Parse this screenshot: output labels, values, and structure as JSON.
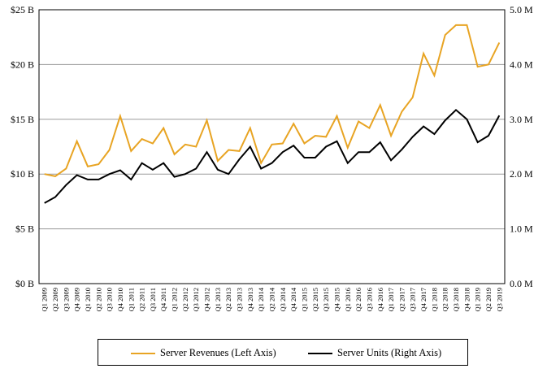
{
  "chart_data": {
    "type": "line",
    "categories": [
      "Q1 2009",
      "Q2 2009",
      "Q3 2009",
      "Q4 2009",
      "Q1 2010",
      "Q2 2010",
      "Q3 2010",
      "Q4 2010",
      "Q1 2011",
      "Q2 2011",
      "Q3 2011",
      "Q4 2011",
      "Q1 2012",
      "Q2 2012",
      "Q3 2012",
      "Q4 2012",
      "Q1 2013",
      "Q2 2013",
      "Q3 2013",
      "Q4 2013",
      "Q1 2014",
      "Q2 2014",
      "Q3 2014",
      "Q4 2014",
      "Q1 2015",
      "Q2 2015",
      "Q3 2015",
      "Q4 2015",
      "Q1 2016",
      "Q2 2016",
      "Q3 2016",
      "Q4 2016",
      "Q1 2017",
      "Q2 2017",
      "Q3 2017",
      "Q4 2017",
      "Q1 2018",
      "Q2 2018",
      "Q3 2018",
      "Q4 2018",
      "Q1 2019",
      "Q2 2019",
      "Q3 2019"
    ],
    "series": [
      {
        "name": "Server Revenues (Left Axis)",
        "axis": "left",
        "color": "#E8A423",
        "values": [
          10.0,
          9.8,
          10.5,
          13.0,
          10.7,
          10.9,
          12.2,
          15.3,
          12.1,
          13.2,
          12.8,
          14.2,
          11.8,
          12.7,
          12.5,
          14.9,
          11.2,
          12.2,
          12.1,
          14.2,
          11.0,
          12.7,
          12.8,
          14.6,
          12.8,
          13.5,
          13.4,
          15.3,
          12.4,
          14.8,
          14.2,
          16.3,
          13.5,
          15.7,
          17.0,
          21.0,
          19.0,
          22.7,
          23.6,
          23.6,
          19.8,
          20.0,
          22.0
        ]
      },
      {
        "name": "Server Units (Right Axis)",
        "axis": "right",
        "color": "#000000",
        "values": [
          1.47,
          1.58,
          1.8,
          1.98,
          1.9,
          1.9,
          2.0,
          2.07,
          1.9,
          2.2,
          2.08,
          2.2,
          1.95,
          2.0,
          2.1,
          2.4,
          2.08,
          2.0,
          2.27,
          2.5,
          2.1,
          2.2,
          2.4,
          2.52,
          2.3,
          2.3,
          2.5,
          2.6,
          2.2,
          2.4,
          2.4,
          2.58,
          2.25,
          2.45,
          2.68,
          2.87,
          2.73,
          2.98,
          3.17,
          3.0,
          2.58,
          2.7,
          3.07
        ]
      }
    ],
    "left_axis": {
      "ticks": [
        "$0 B",
        "$5 B",
        "$10 B",
        "$15 B",
        "$20 B",
        "$25 B"
      ],
      "ylim": [
        0,
        25
      ]
    },
    "right_axis": {
      "ticks": [
        "0.0 M",
        "1.0 M",
        "2.0 M",
        "3.0 M",
        "4.0 M",
        "5.0 M"
      ],
      "ylim": [
        0,
        5
      ]
    },
    "grid": true,
    "legend_position": "bottom"
  }
}
